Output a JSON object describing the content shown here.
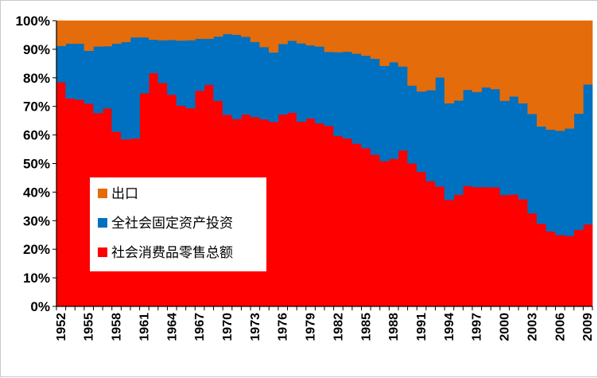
{
  "chart_data": {
    "type": "area",
    "stacked": true,
    "percent": true,
    "title": "",
    "xlabel": "",
    "ylabel": "",
    "ylim": [
      0,
      100
    ],
    "y_ticks": [
      "0%",
      "10%",
      "20%",
      "30%",
      "40%",
      "50%",
      "60%",
      "70%",
      "80%",
      "90%",
      "100%"
    ],
    "x_tick_labels": [
      "1952",
      "1955",
      "1958",
      "1961",
      "1964",
      "1967",
      "1970",
      "1973",
      "1976",
      "1979",
      "1982",
      "1985",
      "1988",
      "1991",
      "1994",
      "1997",
      "2000",
      "2003",
      "2006",
      "2009"
    ],
    "legend_position": "lower-left",
    "grid": false,
    "x": [
      1952,
      1953,
      1954,
      1955,
      1956,
      1957,
      1958,
      1959,
      1960,
      1961,
      1962,
      1963,
      1964,
      1965,
      1966,
      1967,
      1968,
      1969,
      1970,
      1971,
      1972,
      1973,
      1974,
      1975,
      1976,
      1977,
      1978,
      1979,
      1980,
      1981,
      1982,
      1983,
      1984,
      1985,
      1986,
      1987,
      1988,
      1989,
      1990,
      1991,
      1992,
      1993,
      1994,
      1995,
      1996,
      1997,
      1998,
      1999,
      2000,
      2001,
      2002,
      2003,
      2004,
      2005,
      2006,
      2007,
      2008,
      2009
    ],
    "series": [
      {
        "name": "社会消费品零售总额",
        "color": "#ff0000",
        "values": [
          78.5,
          72.8,
          72.4,
          71,
          67.7,
          69.3,
          61.2,
          58.5,
          58.8,
          74.6,
          81.7,
          78.2,
          74.1,
          70.3,
          69.4,
          75.5,
          77.6,
          72,
          67.1,
          65.6,
          67.2,
          66.3,
          65.5,
          64.6,
          67.2,
          67.8,
          64.7,
          65.8,
          64.1,
          63.2,
          59.7,
          58.8,
          57,
          55.4,
          53.1,
          50.9,
          51.7,
          54.6,
          50.1,
          47.1,
          43.9,
          42,
          37.3,
          39.1,
          42.2,
          41.8,
          41.8,
          41.7,
          39,
          39.2,
          37.5,
          32.6,
          28.9,
          26.3,
          25,
          24.7,
          26.8,
          28.7
        ]
      },
      {
        "name": "全社会固定资产投资",
        "color": "#0070c0",
        "values": [
          12.7,
          19.2,
          19.6,
          18.5,
          23.3,
          21.8,
          30.8,
          34.1,
          35.4,
          19.6,
          11.7,
          15,
          19.2,
          22.8,
          23.8,
          18.2,
          16.1,
          22.5,
          28.3,
          29.5,
          27.2,
          26.3,
          25.3,
          24.3,
          24.7,
          25.2,
          27.4,
          25.6,
          26.9,
          25.9,
          29.3,
          30.4,
          31.5,
          32.4,
          33.6,
          33.3,
          33.8,
          29.4,
          27.2,
          28.2,
          31.8,
          38.2,
          33.8,
          33,
          33.6,
          33.3,
          34.9,
          34.4,
          33,
          34.3,
          33.6,
          34.8,
          34.1,
          35.6,
          36.5,
          37.6,
          40.7,
          49
        ]
      },
      {
        "name": "出口",
        "color": "#e46c0a",
        "values": [
          8.8,
          8,
          8,
          10.5,
          9,
          8.9,
          8,
          7.4,
          5.8,
          5.8,
          6.6,
          6.8,
          6.7,
          6.9,
          6.8,
          6.3,
          6.3,
          5.5,
          4.6,
          4.9,
          5.6,
          7.4,
          9.2,
          11.1,
          8.1,
          7,
          7.9,
          8.6,
          9,
          10.9,
          11,
          10.8,
          11.5,
          12.2,
          13.3,
          15.8,
          14.5,
          16,
          22.7,
          24.7,
          24.3,
          19.8,
          28.9,
          27.9,
          24.2,
          24.9,
          23.3,
          23.9,
          28,
          26.5,
          28.9,
          32.6,
          37,
          38.1,
          38.5,
          37.7,
          32.5,
          22.3
        ]
      }
    ]
  }
}
